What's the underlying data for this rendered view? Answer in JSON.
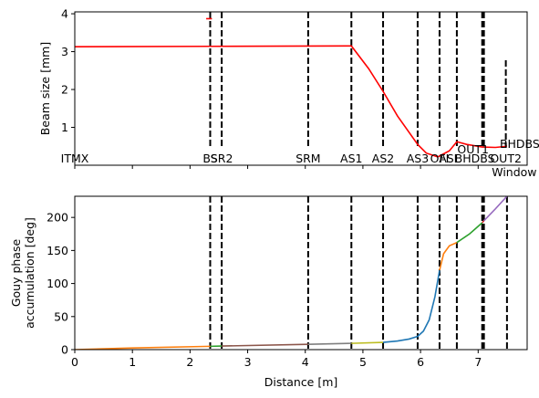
{
  "chart_data": [
    {
      "type": "line",
      "ylabel": "Beam size [mm]",
      "xlim": [
        0,
        7.85
      ],
      "ylim": [
        0.0,
        4.05
      ],
      "yticks": [
        1,
        2,
        3,
        4
      ],
      "show_x_tick_labels": false,
      "markers": [
        {
          "label": "ITMX",
          "x": 0.0,
          "dashed": false
        },
        {
          "label": "BS",
          "x": 2.35,
          "dashed": true
        },
        {
          "label": "SR2",
          "x": 2.55,
          "dashed": true
        },
        {
          "label": "SRM",
          "x": 4.05,
          "dashed": true
        },
        {
          "label": "AS1",
          "x": 4.8,
          "dashed": true
        },
        {
          "label": "AS2",
          "x": 5.35,
          "dashed": true
        },
        {
          "label": "AS3",
          "x": 5.95,
          "dashed": true
        },
        {
          "label": "OFI",
          "x": 6.33,
          "dashed": true
        },
        {
          "label": "ASL",
          "x": 6.63,
          "dashed": true
        },
        {
          "label": "OUT1",
          "x": 7.07,
          "dashed": true
        },
        {
          "label": "BHDBS",
          "x": 7.1,
          "dashed": true
        },
        {
          "label": "OUT2",
          "x": 7.48,
          "dashed": true
        },
        {
          "label": "Window",
          "x": 7.5,
          "dashed": true
        },
        {
          "label": "BHDBS",
          "x": 7.5,
          "dashed": false
        }
      ],
      "series": [
        {
          "color": "#ff0000",
          "x": [
            0.0,
            2.35,
            4.8,
            5.1,
            5.35,
            5.6,
            5.95,
            6.1,
            6.3,
            6.5,
            6.63,
            6.8,
            7.07,
            7.3,
            7.5
          ],
          "values": [
            3.13,
            3.14,
            3.15,
            2.55,
            1.95,
            1.3,
            0.55,
            0.32,
            0.22,
            0.38,
            0.62,
            0.55,
            0.48,
            0.47,
            0.5
          ]
        },
        {
          "color": "#ff0000",
          "x": [
            2.28,
            2.38
          ],
          "values": [
            3.87,
            3.87
          ]
        }
      ]
    },
    {
      "type": "line",
      "xlabel": "Distance [m]",
      "ylabel": "Gouy phase accumulation [deg]",
      "xlim": [
        0,
        7.85
      ],
      "ylim": [
        0,
        232
      ],
      "xticks": [
        0,
        1,
        2,
        3,
        4,
        5,
        6,
        7
      ],
      "yticks": [
        0,
        50,
        100,
        150,
        200
      ],
      "markers": [
        {
          "x": 2.35
        },
        {
          "x": 2.55
        },
        {
          "x": 4.05
        },
        {
          "x": 4.8
        },
        {
          "x": 5.35
        },
        {
          "x": 5.95
        },
        {
          "x": 6.33
        },
        {
          "x": 6.63
        },
        {
          "x": 7.07
        },
        {
          "x": 7.1
        },
        {
          "x": 7.5
        }
      ],
      "series": [
        {
          "color": "#ff7f0e",
          "x": [
            0.0,
            1.0,
            2.35
          ],
          "values": [
            0,
            2.5,
            5
          ]
        },
        {
          "color": "#2ca02c",
          "x": [
            2.35,
            2.55
          ],
          "values": [
            5,
            5.4
          ]
        },
        {
          "color": "#8c564b",
          "x": [
            2.55,
            4.05
          ],
          "values": [
            5.4,
            8
          ]
        },
        {
          "color": "#7f7f7f",
          "x": [
            4.05,
            4.8
          ],
          "values": [
            8,
            9.5
          ]
        },
        {
          "color": "#bcbd22",
          "x": [
            4.8,
            5.35
          ],
          "values": [
            9.5,
            11
          ]
        },
        {
          "color": "#1f77b4",
          "x": [
            5.35,
            5.6,
            5.8,
            5.95,
            6.05,
            6.15,
            6.25,
            6.33
          ],
          "values": [
            11,
            13,
            16,
            20,
            28,
            45,
            80,
            120
          ]
        },
        {
          "color": "#ff7f0e",
          "x": [
            6.33,
            6.4,
            6.5,
            6.63
          ],
          "values": [
            120,
            145,
            157,
            162
          ]
        },
        {
          "color": "#2ca02c",
          "x": [
            6.63,
            6.85,
            7.07
          ],
          "values": [
            162,
            175,
            192
          ]
        },
        {
          "color": "#d62728",
          "x": [
            7.07,
            7.1
          ],
          "values": [
            192,
            195
          ]
        },
        {
          "color": "#9467bd",
          "x": [
            7.1,
            7.3,
            7.5
          ],
          "values": [
            195,
            213,
            232
          ]
        }
      ]
    }
  ]
}
